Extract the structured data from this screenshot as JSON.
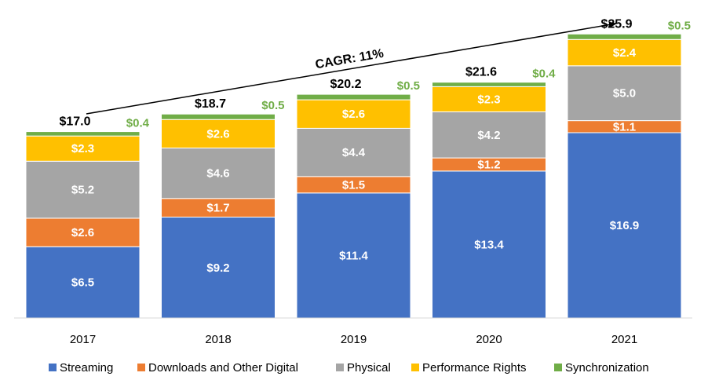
{
  "chart_data": {
    "type": "bar",
    "stacked": true,
    "title": "",
    "xlabel": "",
    "ylabel": "",
    "ylim": [
      0,
      29
    ],
    "categories": [
      "2017",
      "2018",
      "2019",
      "2020",
      "2021"
    ],
    "series": [
      {
        "name": "Streaming",
        "values": [
          6.5,
          9.2,
          11.4,
          13.4,
          16.9
        ],
        "labels": [
          "$6.5",
          "$9.2",
          "$11.4",
          "$13.4",
          "$16.9"
        ],
        "color": "#4472c4"
      },
      {
        "name": "Downloads and Other Digital",
        "values": [
          2.6,
          1.7,
          1.5,
          1.2,
          1.1
        ],
        "labels": [
          "$2.6",
          "$1.7",
          "$1.5",
          "$1.2",
          "$1.1"
        ],
        "color": "#ed7d31"
      },
      {
        "name": "Physical",
        "values": [
          5.2,
          4.6,
          4.4,
          4.2,
          5.0
        ],
        "labels": [
          "$5.2",
          "$4.6",
          "$4.4",
          "$4.2",
          "$5.0"
        ],
        "color": "#a5a5a5"
      },
      {
        "name": "Performance Rights",
        "values": [
          2.3,
          2.6,
          2.6,
          2.3,
          2.4
        ],
        "labels": [
          "$2.3",
          "$2.6",
          "$2.6",
          "$2.3",
          "$2.4"
        ],
        "color": "#ffc000"
      },
      {
        "name": "Synchronization",
        "values": [
          0.4,
          0.5,
          0.5,
          0.4,
          0.5
        ],
        "labels": [
          "$0.4",
          "$0.5",
          "$0.5",
          "$0.4",
          "$0.5"
        ],
        "color": "#70ad47"
      }
    ],
    "totals": [
      17.0,
      18.7,
      20.2,
      21.6,
      25.9
    ],
    "total_labels": [
      "$17.0",
      "$18.7",
      "$20.2",
      "$21.6",
      "$25.9"
    ],
    "annotation": "CAGR: 11%",
    "legend_position": "bottom"
  }
}
